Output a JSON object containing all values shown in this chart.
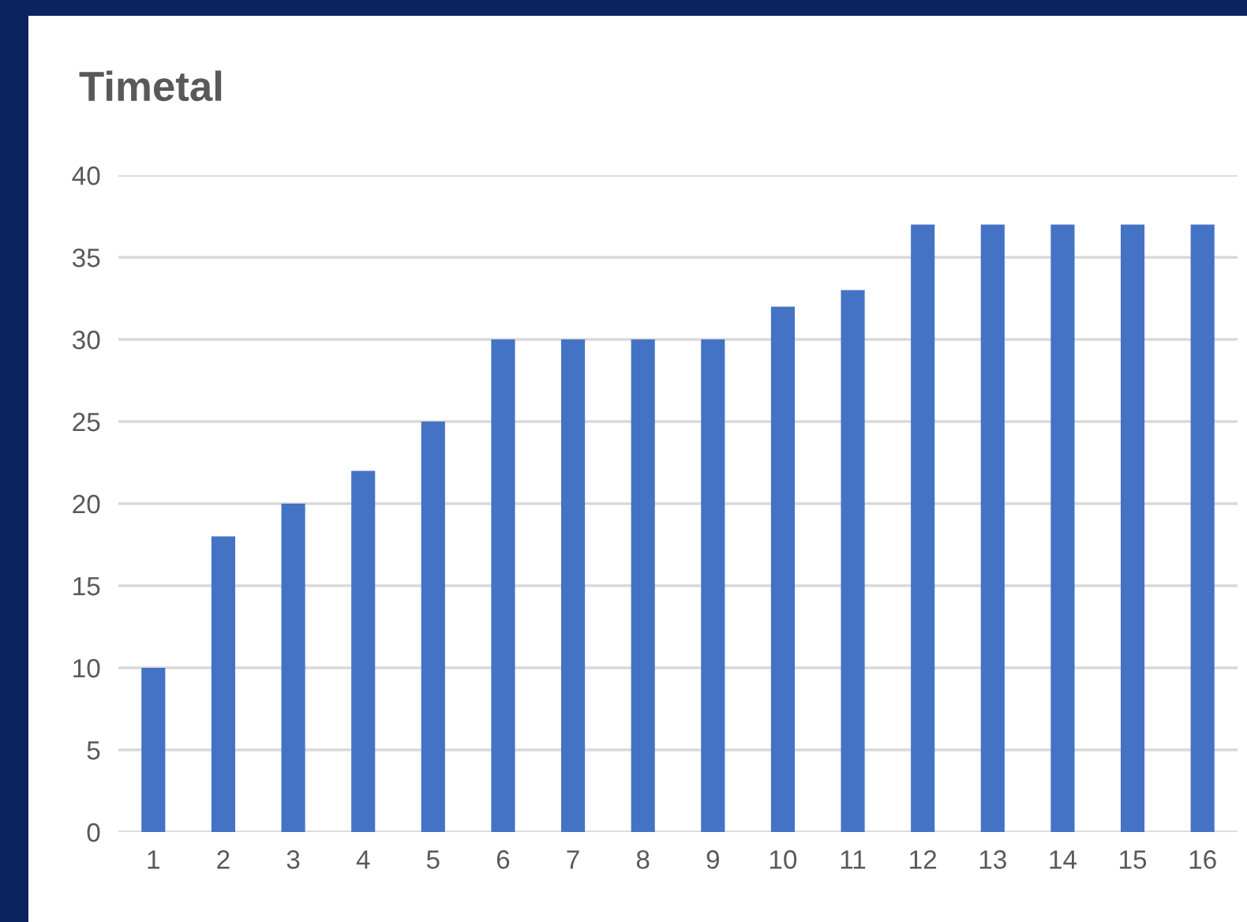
{
  "chart_data": {
    "type": "bar",
    "title": "Timetal",
    "categories": [
      "1",
      "2",
      "3",
      "4",
      "5",
      "6",
      "7",
      "8",
      "9",
      "10",
      "11",
      "12",
      "13",
      "14",
      "15",
      "16"
    ],
    "values": [
      10,
      18,
      20,
      22,
      25,
      30,
      30,
      30,
      30,
      32,
      33,
      37,
      37,
      37,
      37,
      37
    ],
    "color": "#4472c4",
    "ylim": [
      0,
      40
    ],
    "yticks": [
      0,
      5,
      10,
      15,
      20,
      25,
      30,
      35,
      40
    ],
    "grid": "y",
    "legend": false
  }
}
